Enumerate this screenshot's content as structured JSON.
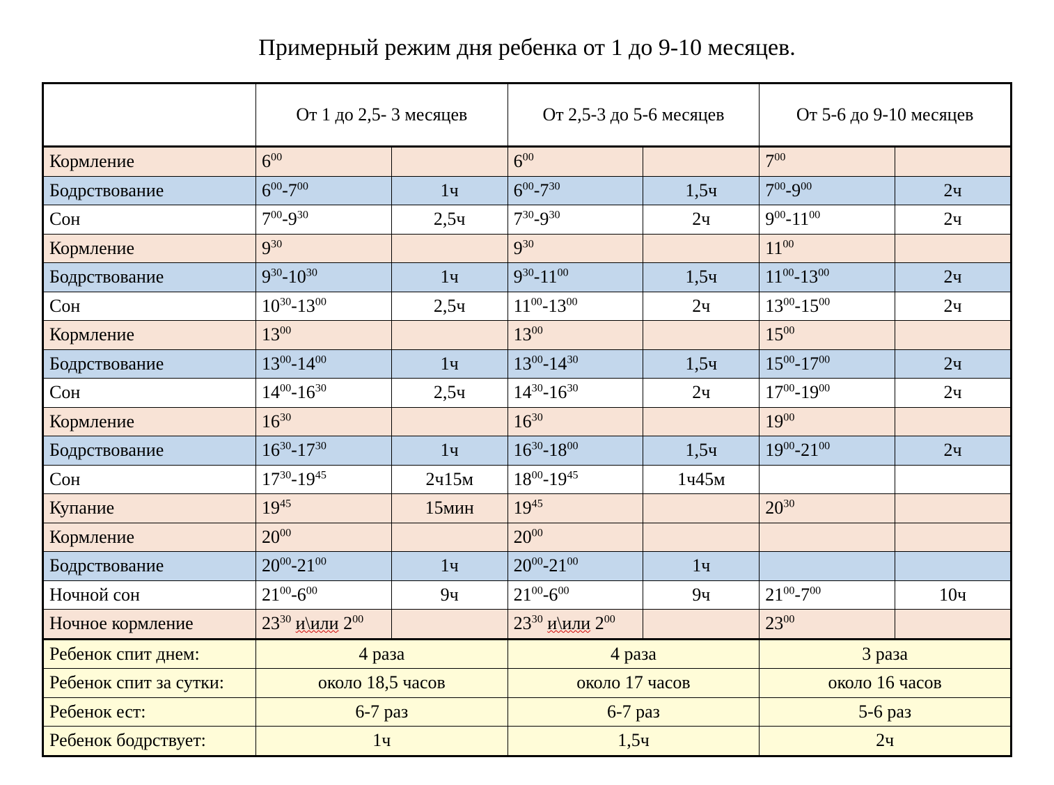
{
  "title": "Примерный режим дня ребенка от 1 до 9-10 месяцев.",
  "colors": {
    "peach": "#f8e3d6",
    "blue": "#c3d7ec",
    "white": "#ffffff",
    "yellow": "#fffcd8"
  },
  "headers": [
    "",
    "От 1 до 2,5- 3 месяцев",
    "От 2,5-3 до 5-6 месяцев",
    "От 5-6 до 9-10 месяцев"
  ],
  "rows": [
    {
      "label": "Кормление",
      "bg": "peach",
      "cells": [
        {
          "t": "6^00",
          "d": ""
        },
        {
          "t": "6^00",
          "d": ""
        },
        {
          "t": "7^00",
          "d": ""
        }
      ]
    },
    {
      "label": "Бодрствование",
      "bg": "blue",
      "cells": [
        {
          "t": "6^00-7^00",
          "d": "1ч"
        },
        {
          "t": "6^00-7^30",
          "d": "1,5ч"
        },
        {
          "t": "7^00-9^00",
          "d": "2ч"
        }
      ]
    },
    {
      "label": "Сон",
      "bg": "white",
      "cells": [
        {
          "t": "7^00-9^30",
          "d": "2,5ч"
        },
        {
          "t": "7^30-9^30",
          "d": "2ч"
        },
        {
          "t": "9^00-11^00",
          "d": "2ч"
        }
      ]
    },
    {
      "label": "Кормление",
      "bg": "peach",
      "cells": [
        {
          "t": "9^30",
          "d": ""
        },
        {
          "t": "9^30",
          "d": ""
        },
        {
          "t": "11^00",
          "d": ""
        }
      ]
    },
    {
      "label": "Бодрствование",
      "bg": "blue",
      "cells": [
        {
          "t": "9^30-10^30",
          "d": "1ч"
        },
        {
          "t": "9^30-11^00",
          "d": "1,5ч"
        },
        {
          "t": "11^00-13^00",
          "d": "2ч"
        }
      ]
    },
    {
      "label": "Сон",
      "bg": "white",
      "cells": [
        {
          "t": "10^30-13^00",
          "d": "2,5ч"
        },
        {
          "t": "11^00-13^00",
          "d": "2ч"
        },
        {
          "t": "13^00-15^00",
          "d": "2ч"
        }
      ]
    },
    {
      "label": "Кормление",
      "bg": "peach",
      "cells": [
        {
          "t": "13^00",
          "d": ""
        },
        {
          "t": "13^00",
          "d": ""
        },
        {
          "t": "15^00",
          "d": ""
        }
      ]
    },
    {
      "label": "Бодрствование",
      "bg": "blue",
      "cells": [
        {
          "t": "13^00-14^00",
          "d": "1ч"
        },
        {
          "t": "13^00-14^30",
          "d": "1,5ч"
        },
        {
          "t": "15^00-17^00",
          "d": "2ч"
        }
      ]
    },
    {
      "label": "Сон",
      "bg": "white",
      "cells": [
        {
          "t": "14^00-16^30",
          "d": "2,5ч"
        },
        {
          "t": "14^30-16^30",
          "d": "2ч"
        },
        {
          "t": "17^00-19^00",
          "d": "2ч"
        }
      ]
    },
    {
      "label": "Кормление",
      "bg": "peach",
      "cells": [
        {
          "t": "16^30",
          "d": ""
        },
        {
          "t": "16^30",
          "d": ""
        },
        {
          "t": "19^00",
          "d": ""
        }
      ]
    },
    {
      "label": "Бодрствование",
      "bg": "blue",
      "cells": [
        {
          "t": "16^30-17^30",
          "d": "1ч"
        },
        {
          "t": "16^30-18^00",
          "d": "1,5ч"
        },
        {
          "t": "19^00-21^00",
          "d": "2ч"
        }
      ]
    },
    {
      "label": "Сон",
      "bg": "white",
      "cells": [
        {
          "t": "17^30-19^45",
          "d": "2ч15м"
        },
        {
          "t": "18^00-19^45",
          "d": "1ч45м"
        },
        {
          "t": "",
          "d": ""
        }
      ]
    },
    {
      "label": "Купание",
      "bg": "peach",
      "cells": [
        {
          "t": "19^45",
          "d": "15мин"
        },
        {
          "t": "19^45",
          "d": ""
        },
        {
          "t": "20^30",
          "d": ""
        }
      ]
    },
    {
      "label": "Кормление",
      "bg": "peach",
      "cells": [
        {
          "t": "20^00",
          "d": ""
        },
        {
          "t": "20^00",
          "d": ""
        },
        {
          "t": "",
          "d": ""
        }
      ]
    },
    {
      "label": "Бодрствование",
      "bg": "blue",
      "cells": [
        {
          "t": "20^00-21^00",
          "d": "1ч"
        },
        {
          "t": "20^00-21^00",
          "d": "1ч"
        },
        {
          "t": "",
          "d": ""
        }
      ]
    },
    {
      "label": "Ночной сон",
      "bg": "white",
      "cells": [
        {
          "t": "21^00-6^00",
          "d": "9ч"
        },
        {
          "t": "21^00-6^00",
          "d": "9ч"
        },
        {
          "t": "21^00-7^00",
          "d": "10ч"
        }
      ]
    },
    {
      "label": "Ночное кормление",
      "bg": "peach",
      "cells": [
        {
          "t": "23^30 ~и\\или~ 2^00",
          "d": ""
        },
        {
          "t": "23^30 ~и\\или~ 2^00",
          "d": ""
        },
        {
          "t": "23^00",
          "d": ""
        }
      ]
    }
  ],
  "summary": [
    {
      "label": "Ребенок спит днем:",
      "vals": [
        "4 раза",
        "4 раза",
        "3 раза"
      ]
    },
    {
      "label": "Ребенок спит за сутки:",
      "vals": [
        "около 18,5 часов",
        "около 17 часов",
        "около 16 часов"
      ]
    },
    {
      "label": "Ребенок ест:",
      "vals": [
        "6-7 раз",
        "6-7 раз",
        "5-6 раз"
      ]
    },
    {
      "label": "Ребенок бодрствует:",
      "vals": [
        "1ч",
        "1,5ч",
        "2ч"
      ]
    }
  ]
}
